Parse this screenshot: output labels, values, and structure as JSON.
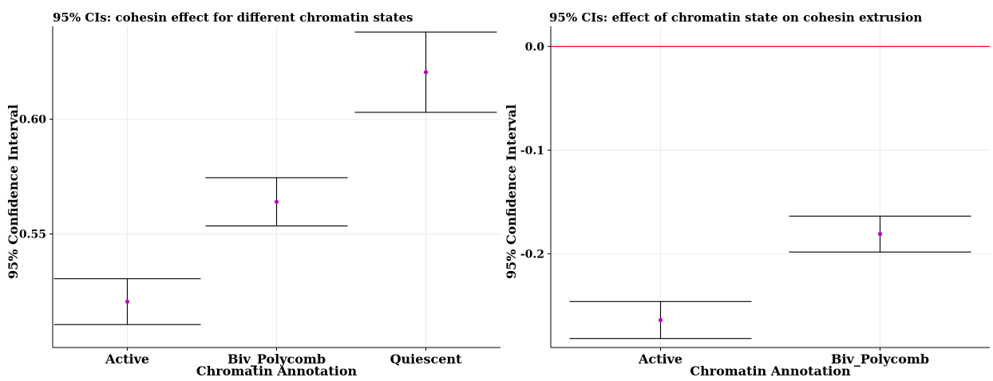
{
  "chart_data": [
    {
      "type": "errorbar",
      "title": "95% CIs: cohesin effect for different chromatin states",
      "xlabel": "Chromatin Annotation",
      "ylabel": "95% Confidence Interval",
      "categories": [
        "Active",
        "Biv_Polycomb",
        "Quiescent"
      ],
      "estimate": [
        0.5205,
        0.564,
        0.6205
      ],
      "ci_lower": [
        0.5105,
        0.5535,
        0.603
      ],
      "ci_upper": [
        0.5305,
        0.5745,
        0.638
      ],
      "yticks": [
        0.55,
        0.6
      ],
      "ytick_labels": [
        "0.55",
        "0.60"
      ],
      "ylim": [
        0.5005,
        0.6405
      ],
      "grid": true,
      "point_color": "#c000c0",
      "bar_color": "#000000"
    },
    {
      "type": "errorbar",
      "title": "95% CIs: effect of chromatin state on cohesin extrusion",
      "xlabel": "Chromatin Annotation",
      "ylabel": "95% Confidence Interval",
      "categories": [
        "Active",
        "Biv_Polycomb"
      ],
      "estimate": [
        -0.264,
        -0.181
      ],
      "ci_lower": [
        -0.2818,
        -0.1983
      ],
      "ci_upper": [
        -0.2461,
        -0.1637
      ],
      "yticks": [
        0.0,
        -0.1,
        -0.2
      ],
      "ytick_labels": [
        "0.0",
        "-0.1",
        "-0.2"
      ],
      "ylim": [
        -0.2905,
        0.0195
      ],
      "reference_line": 0.0,
      "reference_line_color": "#ff0000",
      "grid": true,
      "point_color": "#c000c0",
      "bar_color": "#000000"
    }
  ]
}
